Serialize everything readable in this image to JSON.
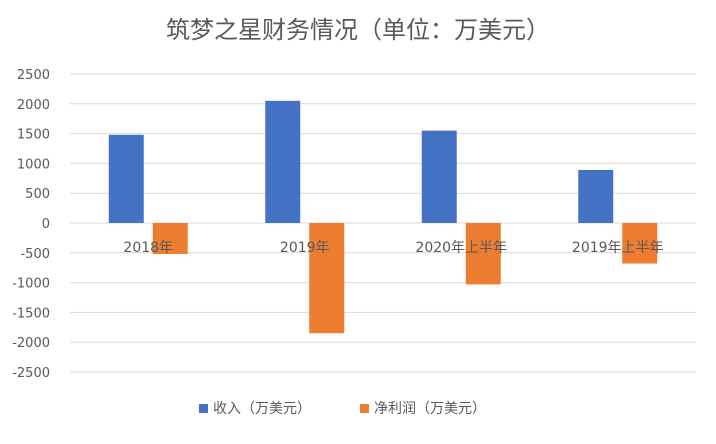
{
  "chart_data": {
    "type": "bar",
    "title": "筑梦之星财务情况（单位：万美元）",
    "categories": [
      "2018年",
      "2019年",
      "2020年上半年",
      "2019年上半年"
    ],
    "series": [
      {
        "name": "收入（万美元）",
        "color": "#4472C4",
        "values": [
          1480,
          2050,
          1550,
          890
        ]
      },
      {
        "name": "净利润（万美元）",
        "color": "#ED7D31",
        "values": [
          -520,
          -1850,
          -1030,
          -680
        ]
      }
    ],
    "ylim": [
      -2500,
      2500
    ],
    "yticks": [
      2500,
      2000,
      1500,
      1000,
      500,
      0,
      -500,
      -1000,
      -1500,
      -2000,
      -2500
    ],
    "grid": true,
    "legend": "bottom"
  }
}
